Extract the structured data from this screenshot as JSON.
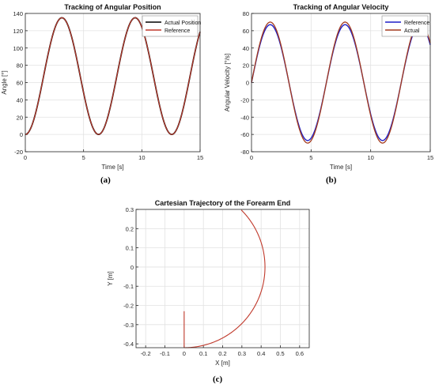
{
  "colors": {
    "grid": "#e2e2e2",
    "axis": "#262626",
    "black_line": "#000000",
    "brown_line": "#c0392b",
    "blue_line": "#1f1fc7",
    "red_line": "#a33a1e"
  },
  "panels": [
    "(a)",
    "(b)",
    "(c)"
  ],
  "chart_data": [
    {
      "type": "line",
      "title": "Tracking of Angular Position",
      "xlabel": "Time [s]",
      "ylabel": "Angle [°]",
      "xlim": [
        0,
        15
      ],
      "ylim": [
        -20,
        140
      ],
      "xticks": [
        "0",
        "5",
        "10",
        "15"
      ],
      "yticks": [
        "-20",
        "0",
        "20",
        "40",
        "60",
        "80",
        "100",
        "120",
        "140"
      ],
      "grid": true,
      "legend_position": "top-right",
      "series": [
        {
          "name": "Actual Position",
          "color": "#000000",
          "function": "67.5 - 67.5*cos(t)",
          "t_range": [
            0,
            15
          ]
        },
        {
          "name": "Reference",
          "color": "#c0392b",
          "function": "67.5 - 67.5*cos(t)",
          "t_range": [
            0,
            15
          ]
        }
      ]
    },
    {
      "type": "line",
      "title": "Tracking of Angular Velocity",
      "xlabel": "Time [s]",
      "ylabel": "Angular Velocity [°/s]",
      "xlim": [
        0,
        15
      ],
      "ylim": [
        -80,
        80
      ],
      "xticks": [
        "0",
        "5",
        "10",
        "15"
      ],
      "yticks": [
        "-80",
        "-60",
        "-40",
        "-20",
        "0",
        "20",
        "40",
        "60",
        "80"
      ],
      "grid": true,
      "legend_position": "top-right",
      "series": [
        {
          "name": "Reference",
          "color": "#1f1fc7",
          "function": "67*sin(t)",
          "t_range": [
            0,
            15
          ]
        },
        {
          "name": "Actual",
          "color": "#a33a1e",
          "function": "70*sin(t)",
          "t_range": [
            0,
            15
          ]
        }
      ]
    },
    {
      "type": "line",
      "title": "Cartesian Trajectory of the Forearm End",
      "xlabel": "X [m]",
      "ylabel": "Y [m]",
      "xlim": [
        -0.25,
        0.65
      ],
      "ylim": [
        -0.42,
        0.3
      ],
      "xticks": [
        "-0.2",
        "-0.1",
        "0",
        "0.1",
        "0.2",
        "0.3",
        "0.4",
        "0.5",
        "0.6"
      ],
      "yticks": [
        "-0.4",
        "-0.3",
        "-0.2",
        "-0.1",
        "0",
        "0.1",
        "0.2",
        "0.3"
      ],
      "grid": true,
      "series": [
        {
          "color": "#c0392b",
          "x_function": "0.42*sin(theta)",
          "y_function": "-0.42*cos(theta)",
          "theta_range_deg": [
            0,
            135
          ]
        },
        {
          "color": "#c0392b",
          "x": [
            0.0,
            0.0
          ],
          "y": [
            -0.42,
            -0.23
          ]
        }
      ]
    }
  ]
}
